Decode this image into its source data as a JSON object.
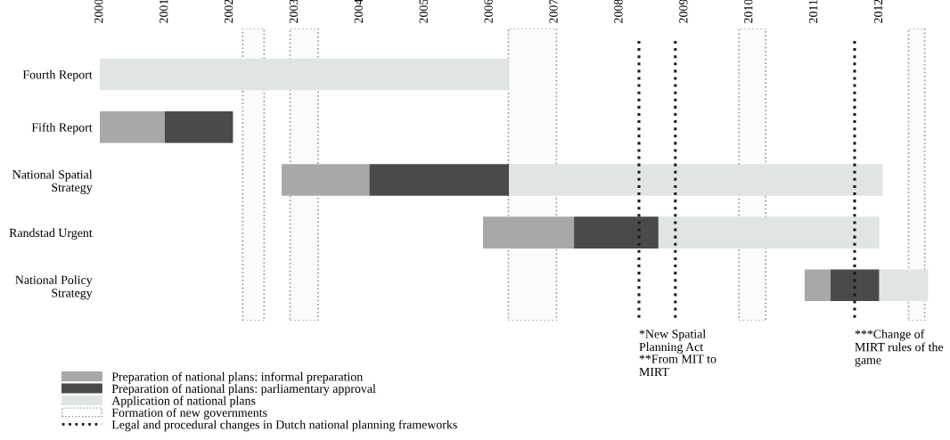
{
  "chart_data": {
    "type": "bar",
    "orientation": "horizontal",
    "categories": [
      "Fourth Report",
      "Fifth Report",
      "National Spatial Strategy",
      "Randstad Urgent",
      "National Policy Strategy"
    ],
    "series": [
      {
        "name": "Preparation of national plans: informal preparation",
        "color": "#a7a8aa",
        "base": [
          null,
          2000,
          2002.8,
          2005.9,
          2010.85
        ],
        "values": [
          null,
          1.0,
          1.35,
          1.4,
          0.4
        ]
      },
      {
        "name": "Preparation of national plans: parliamentary approval",
        "color": "#4a4a4c",
        "base": [
          null,
          2001.0,
          2004.15,
          2007.3,
          2011.25
        ],
        "values": [
          null,
          1.05,
          2.15,
          1.3,
          0.75
        ]
      },
      {
        "name": "Application of national plans",
        "color": "#e1e4e4",
        "base": [
          2000,
          null,
          2006.3,
          2008.6,
          2012.0
        ],
        "values": [
          6.3,
          null,
          5.75,
          3.4,
          0.75
        ]
      }
    ],
    "xlim": [
      2000,
      2012.8
    ],
    "xticks": [
      2000,
      2001,
      2002,
      2003,
      2004,
      2005,
      2006,
      2007,
      2008,
      2009,
      2010,
      2011,
      2012
    ],
    "bands": [
      {
        "axis": "x",
        "from": 2002.2,
        "to": 2002.53,
        "label": "Formation of new governments",
        "color": "#999999"
      },
      {
        "axis": "x",
        "from": 2002.93,
        "to": 2003.36,
        "color": "#999999"
      },
      {
        "axis": "x",
        "from": 2006.29,
        "to": 2007.03,
        "color": "#999999"
      },
      {
        "axis": "x",
        "from": 2009.84,
        "to": 2010.25,
        "color": "#999999"
      },
      {
        "axis": "x",
        "from": 2012.45,
        "to": 2012.7,
        "color": "#999999"
      }
    ],
    "ref_lines": [
      {
        "axis": "x",
        "value": 2008.3,
        "label": "Legal and procedural changes in Dutch national planning frameworks",
        "color": "#1a1a1a",
        "line_style": "dotted"
      },
      {
        "axis": "x",
        "value": 2008.86,
        "color": "#1a1a1a",
        "line_style": "dotted"
      },
      {
        "axis": "x",
        "value": 2011.62,
        "color": "#1a1a1a",
        "line_style": "dotted"
      }
    ],
    "annotations": [
      "*New Spatial Planning Act",
      "**From MIT to MIRT",
      "***Change of MIRT rules of the game"
    ],
    "legend": "bottom left",
    "grid": false
  }
}
